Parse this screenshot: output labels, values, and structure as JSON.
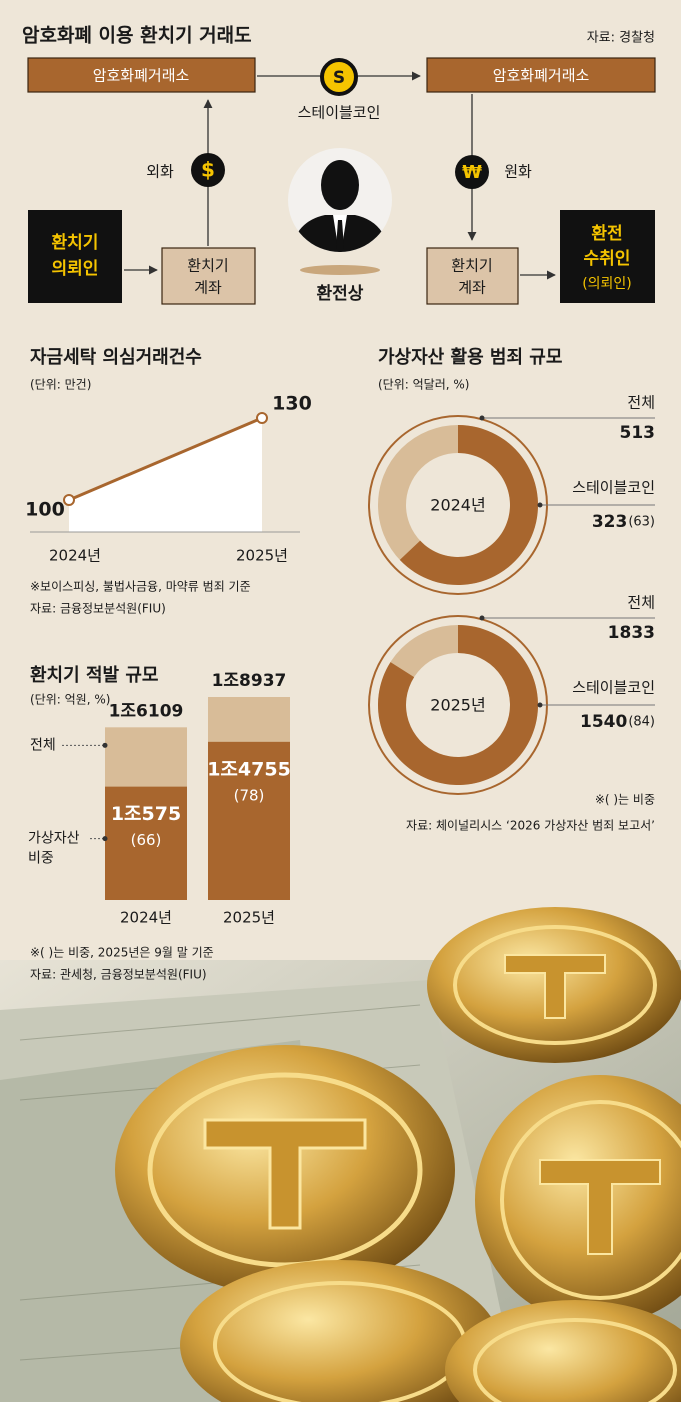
{
  "diagram": {
    "title": "암호화폐 이용 환치기 거래도",
    "source": "자료: 경찰청",
    "exchange_left": "암호화폐거래소",
    "exchange_right": "암호화폐거래소",
    "stablecoin": "스테이블코인",
    "stablecoin_icon": "S",
    "foreign_currency": "외화",
    "foreign_icon": "$",
    "won": "원화",
    "won_icon": "₩",
    "requester": [
      "환치기",
      "의뢰인"
    ],
    "account_left": [
      "환치기",
      "계좌"
    ],
    "dealer": "환전상",
    "account_right": [
      "환치기",
      "계좌"
    ],
    "receiver": [
      "환전",
      "수취인",
      "(의뢰인)"
    ]
  },
  "chart_data": [
    {
      "type": "line",
      "title": "자금세탁 의심거래건수",
      "subtitle": "(단위: 만건)",
      "categories": [
        "2024년",
        "2025년"
      ],
      "values": [
        100,
        130
      ],
      "color": "#a8662e",
      "notes": [
        "※보이스피싱, 불법사금융, 마약류 범죄 기준",
        "자료: 금융정보분석원(FIU)"
      ]
    },
    {
      "type": "bar",
      "title": "환치기 적발 규모",
      "subtitle": "(단위: 억원, %)",
      "categories": [
        "2024년",
        "2025년"
      ],
      "series": [
        {
          "name": "전체",
          "color": "#d8bc98",
          "values": [
            16109,
            18937
          ],
          "value_labels": [
            "1조6109",
            "1조8937"
          ]
        },
        {
          "name": "가상자산 비중",
          "color": "#a8662e",
          "values": [
            10575,
            14755
          ],
          "value_labels": [
            "1조575",
            "1조4755"
          ],
          "shares": [
            66,
            78
          ],
          "share_labels": [
            "(66)",
            "(78)"
          ]
        }
      ],
      "notes": [
        "※( )는 비중, 2025년은 9월 말 기준",
        "자료: 관세청, 금융정보분석원(FIU)"
      ]
    },
    {
      "type": "donut",
      "title": "가상자산 활용 범죄 규모",
      "subtitle": "(단위: 억달러, %)",
      "labels": {
        "total": "전체",
        "stablecoin": "스테이블코인"
      },
      "colors": {
        "total": "#d8bc98",
        "stablecoin": "#a8662e"
      },
      "rings": [
        {
          "name": "2024년",
          "total": 513,
          "stablecoin": 323,
          "share": 63,
          "share_label": "(63)"
        },
        {
          "name": "2025년",
          "total": 1833,
          "stablecoin": 1540,
          "share": 84,
          "share_label": "(84)"
        }
      ],
      "notes": [
        "※( )는 비중",
        "자료: 체이널리시스 ‘2026 가상자산 범죄 보고서’"
      ]
    }
  ]
}
